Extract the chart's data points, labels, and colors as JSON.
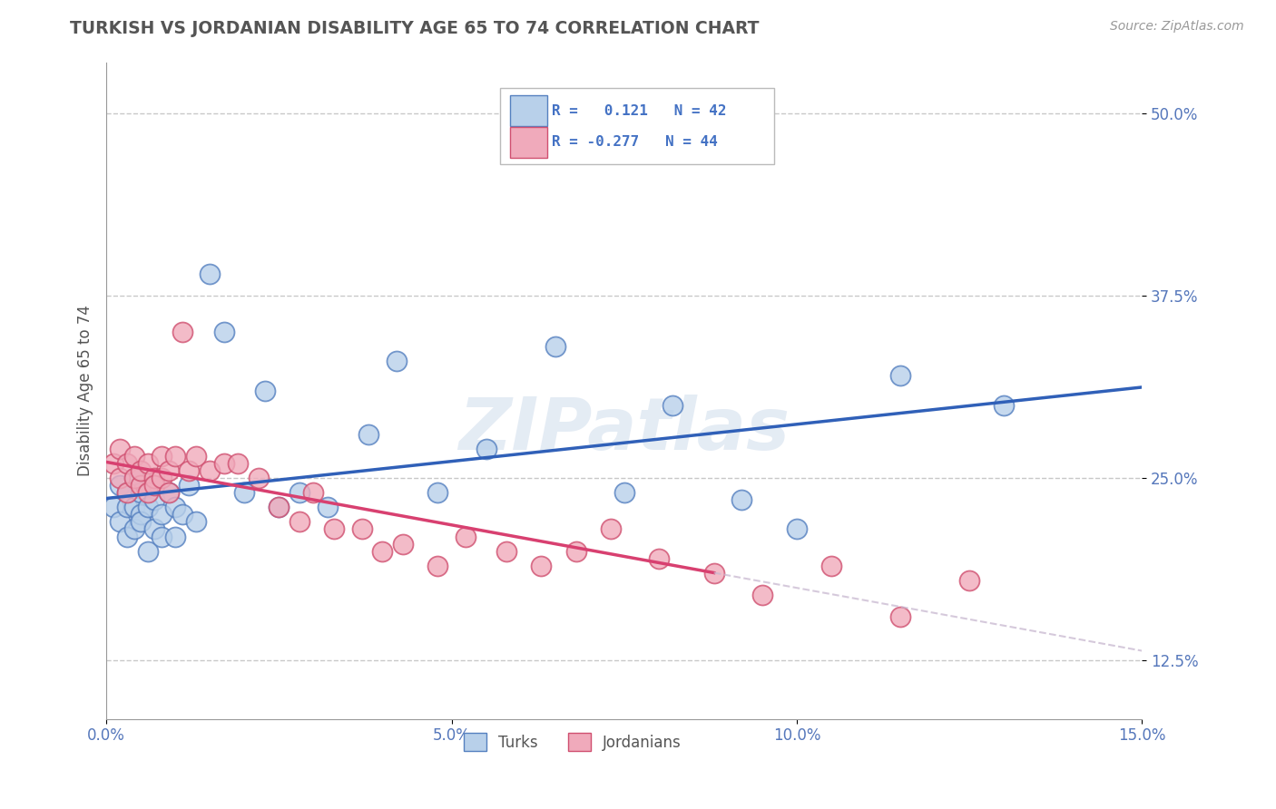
{
  "title": "TURKISH VS JORDANIAN DISABILITY AGE 65 TO 74 CORRELATION CHART",
  "source_text": "Source: ZipAtlas.com",
  "ylabel": "Disability Age 65 to 74",
  "xlim": [
    0.0,
    0.15
  ],
  "ylim": [
    0.085,
    0.535
  ],
  "xticks": [
    0.0,
    0.05,
    0.1,
    0.15
  ],
  "xticklabels": [
    "0.0%",
    "5.0%",
    "10.0%",
    "15.0%"
  ],
  "yticks": [
    0.125,
    0.25,
    0.375,
    0.5
  ],
  "yticklabels": [
    "12.5%",
    "25.0%",
    "37.5%",
    "50.0%"
  ],
  "background_color": "#ffffff",
  "grid_color": "#c8c8c8",
  "watermark": "ZIPatlas",
  "turks_color": "#b8d0ea",
  "turks_edge_color": "#5580c0",
  "jordanians_color": "#f0aabb",
  "jordanians_edge_color": "#d05070",
  "turks_R": 0.121,
  "turks_N": 42,
  "jordanians_R": -0.277,
  "jordanians_N": 44,
  "turks_line_color": "#3060b8",
  "jordanians_line_color": "#d84070",
  "jordanians_dashed_color": "#c8b8d0",
  "turks_x": [
    0.001,
    0.002,
    0.002,
    0.003,
    0.003,
    0.003,
    0.004,
    0.004,
    0.004,
    0.005,
    0.005,
    0.005,
    0.006,
    0.006,
    0.007,
    0.007,
    0.008,
    0.008,
    0.009,
    0.01,
    0.01,
    0.011,
    0.012,
    0.013,
    0.015,
    0.017,
    0.02,
    0.023,
    0.025,
    0.028,
    0.032,
    0.038,
    0.042,
    0.048,
    0.055,
    0.065,
    0.075,
    0.082,
    0.092,
    0.1,
    0.115,
    0.13
  ],
  "turks_y": [
    0.23,
    0.245,
    0.22,
    0.24,
    0.23,
    0.21,
    0.25,
    0.23,
    0.215,
    0.225,
    0.24,
    0.22,
    0.23,
    0.2,
    0.215,
    0.235,
    0.225,
    0.21,
    0.24,
    0.23,
    0.21,
    0.225,
    0.245,
    0.22,
    0.39,
    0.35,
    0.24,
    0.31,
    0.23,
    0.24,
    0.23,
    0.28,
    0.33,
    0.24,
    0.27,
    0.34,
    0.24,
    0.3,
    0.235,
    0.215,
    0.32,
    0.3
  ],
  "jordanians_x": [
    0.001,
    0.002,
    0.002,
    0.003,
    0.003,
    0.004,
    0.004,
    0.005,
    0.005,
    0.006,
    0.006,
    0.007,
    0.007,
    0.008,
    0.008,
    0.009,
    0.009,
    0.01,
    0.011,
    0.012,
    0.013,
    0.015,
    0.017,
    0.019,
    0.022,
    0.025,
    0.028,
    0.03,
    0.033,
    0.037,
    0.04,
    0.043,
    0.048,
    0.052,
    0.058,
    0.063,
    0.068,
    0.073,
    0.08,
    0.088,
    0.095,
    0.105,
    0.115,
    0.125
  ],
  "jordanians_y": [
    0.26,
    0.25,
    0.27,
    0.24,
    0.26,
    0.25,
    0.265,
    0.245,
    0.255,
    0.24,
    0.26,
    0.25,
    0.245,
    0.265,
    0.25,
    0.255,
    0.24,
    0.265,
    0.35,
    0.255,
    0.265,
    0.255,
    0.26,
    0.26,
    0.25,
    0.23,
    0.22,
    0.24,
    0.215,
    0.215,
    0.2,
    0.205,
    0.19,
    0.21,
    0.2,
    0.19,
    0.2,
    0.215,
    0.195,
    0.185,
    0.17,
    0.19,
    0.155,
    0.18
  ],
  "legend_text_color": "#4472c4",
  "title_color": "#555555",
  "axis_label_color": "#555555",
  "tick_color": "#5577bb"
}
